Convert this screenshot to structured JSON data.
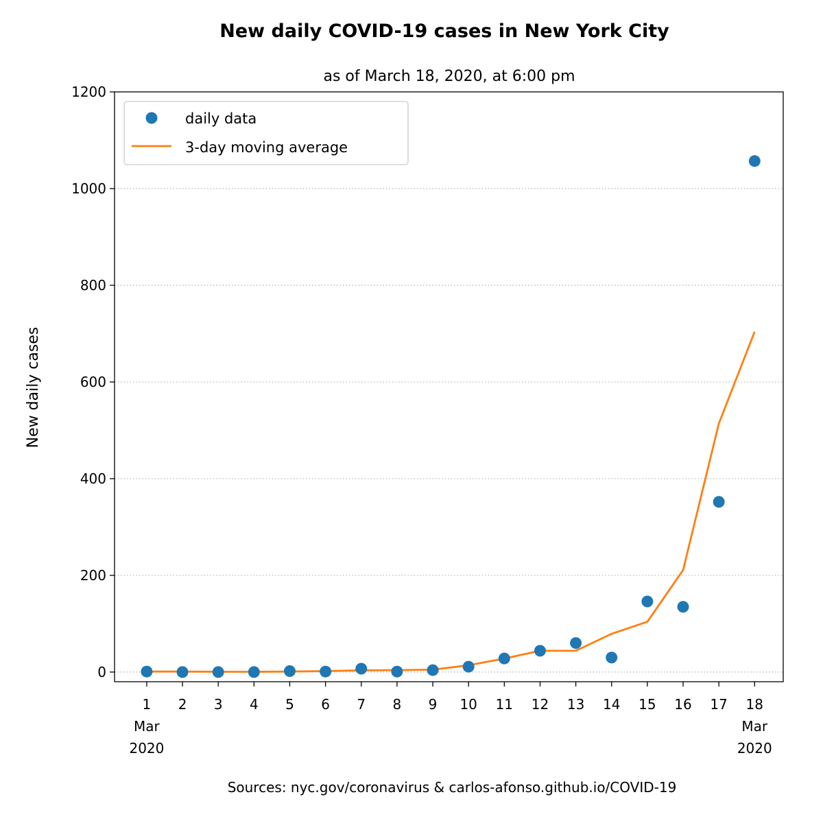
{
  "chart_data": {
    "type": "line",
    "title": "New daily COVID-19 cases in New York City",
    "subtitle": "as of March 18, 2020, at 6:00 pm",
    "ylabel": "New daily cases",
    "xlabel": "",
    "ylim": [
      -20,
      1200
    ],
    "xlim": [
      0.1,
      18.8
    ],
    "yticks": [
      0,
      200,
      400,
      600,
      800,
      1000,
      1200
    ],
    "x": [
      1,
      2,
      3,
      4,
      5,
      6,
      7,
      8,
      9,
      10,
      11,
      12,
      13,
      14,
      15,
      16,
      17,
      18
    ],
    "x_tick_labels": [
      "1",
      "2",
      "3",
      "4",
      "5",
      "6",
      "7",
      "8",
      "9",
      "10",
      "11",
      "12",
      "13",
      "14",
      "15",
      "16",
      "17",
      "18"
    ],
    "x_first_sublabel": [
      "Mar",
      "2020"
    ],
    "x_last_sublabel": [
      "Mar",
      "2020"
    ],
    "grid": "horizontal dotted",
    "legend_position": "top-left",
    "series": [
      {
        "name": "daily data",
        "kind": "scatter",
        "color": "#1f77b4",
        "values": [
          1,
          0,
          0,
          0,
          2,
          1,
          7,
          1,
          4,
          11,
          28,
          44,
          60,
          30,
          146,
          135,
          352,
          1057
        ]
      },
      {
        "name": "3-day moving average",
        "kind": "line",
        "color": "#ff7f0e",
        "values": [
          1,
          1,
          0.5,
          0.5,
          1,
          2,
          3.5,
          4,
          5,
          14,
          28,
          44,
          44,
          79,
          104,
          211,
          514,
          704
        ]
      }
    ],
    "footnote": "Sources:  nyc.gov/coronavirus  &  carlos-afonso.github.io/COVID-19"
  }
}
